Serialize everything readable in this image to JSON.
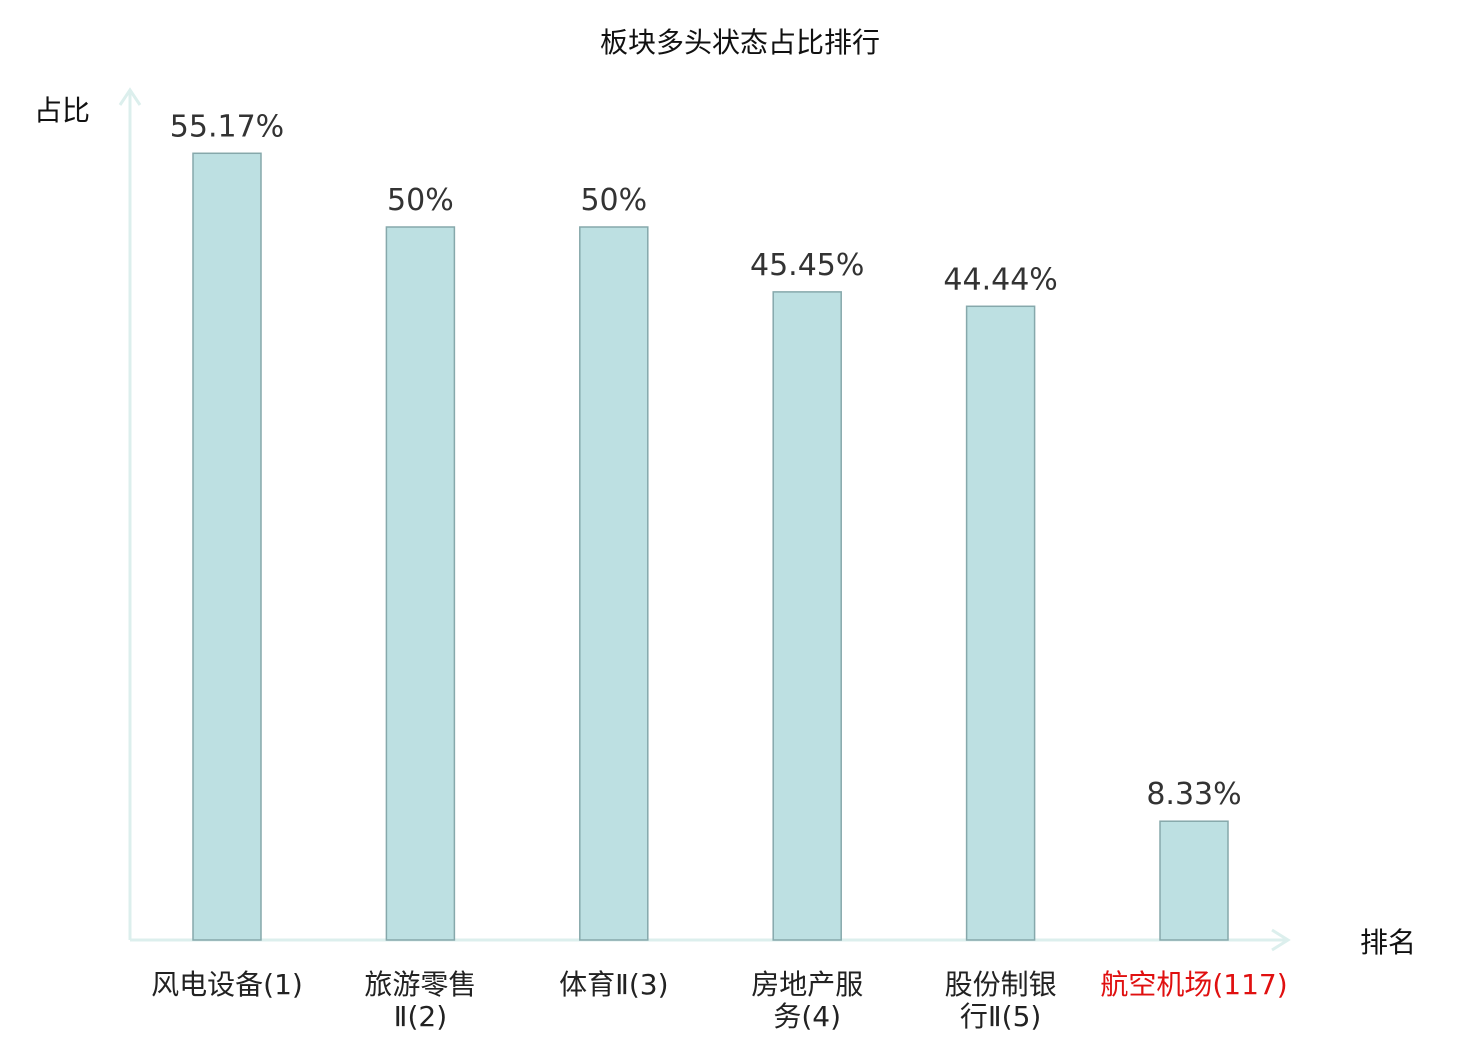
{
  "chart_data": {
    "type": "bar",
    "title": "板块多头状态占比排行",
    "ylabel": "占比",
    "xlabel": "排名",
    "ylim": [
      0,
      60
    ],
    "unit": "%",
    "categories": [
      {
        "lines": [
          "风电设备(1)"
        ],
        "highlight": false
      },
      {
        "lines": [
          "旅游零售",
          "Ⅱ(2)"
        ],
        "highlight": false
      },
      {
        "lines": [
          "体育Ⅱ(3)"
        ],
        "highlight": false
      },
      {
        "lines": [
          "房地产服",
          "务(4)"
        ],
        "highlight": false
      },
      {
        "lines": [
          "股份制银",
          "行Ⅱ(5)"
        ],
        "highlight": false
      },
      {
        "lines": [
          "航空机场(117)"
        ],
        "highlight": true
      }
    ],
    "values": [
      55.17,
      50,
      50,
      45.45,
      44.44,
      8.33
    ],
    "value_labels": [
      "55.17%",
      "50%",
      "50%",
      "45.45%",
      "44.44%",
      "8.33%"
    ],
    "colors": {
      "bar_fill": "#bde0e2",
      "bar_stroke": "#86a8ab",
      "axis": "#dcefed",
      "highlight": "#e01010"
    },
    "grid": false
  }
}
